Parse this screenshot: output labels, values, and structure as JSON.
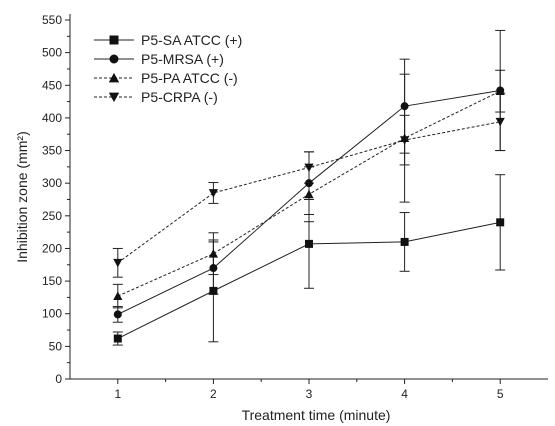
{
  "chart_data": {
    "type": "line",
    "xlabel": "Treatment time (minute)",
    "ylabel": "Inhibition zone (mm²)",
    "xlim": [
      0.5,
      5.5
    ],
    "ylim": [
      0,
      550
    ],
    "x_ticks": [
      1,
      2,
      3,
      4,
      5
    ],
    "y_ticks": [
      0,
      50,
      100,
      150,
      200,
      250,
      300,
      350,
      400,
      450,
      500,
      550
    ],
    "grid": false,
    "legend_position": "top-left",
    "x": [
      1,
      2,
      3,
      4,
      5
    ],
    "series": [
      {
        "name": "P5-SA ATCC (+)",
        "marker": "square",
        "line_style": "solid",
        "values": [
          62,
          135,
          207,
          210,
          240
        ],
        "errors": [
          10,
          78,
          68,
          45,
          73
        ]
      },
      {
        "name": "P5-MRSA (+)",
        "marker": "circle",
        "line_style": "solid",
        "values": [
          99,
          170,
          300,
          418,
          442
        ],
        "errors": [
          12,
          40,
          48,
          72,
          92
        ]
      },
      {
        "name": "P5-PA ATCC (-)",
        "marker": "triangle-up",
        "line_style": "dashed",
        "values": [
          127,
          192,
          283,
          369,
          441
        ],
        "errors": [
          18,
          32,
          42,
          98,
          32
        ]
      },
      {
        "name": "P5-CRPA (-)",
        "marker": "triangle-down",
        "line_style": "dashed",
        "values": [
          178,
          285,
          324,
          366,
          394
        ],
        "errors": [
          22,
          16,
          24,
          38,
          44
        ]
      }
    ]
  }
}
